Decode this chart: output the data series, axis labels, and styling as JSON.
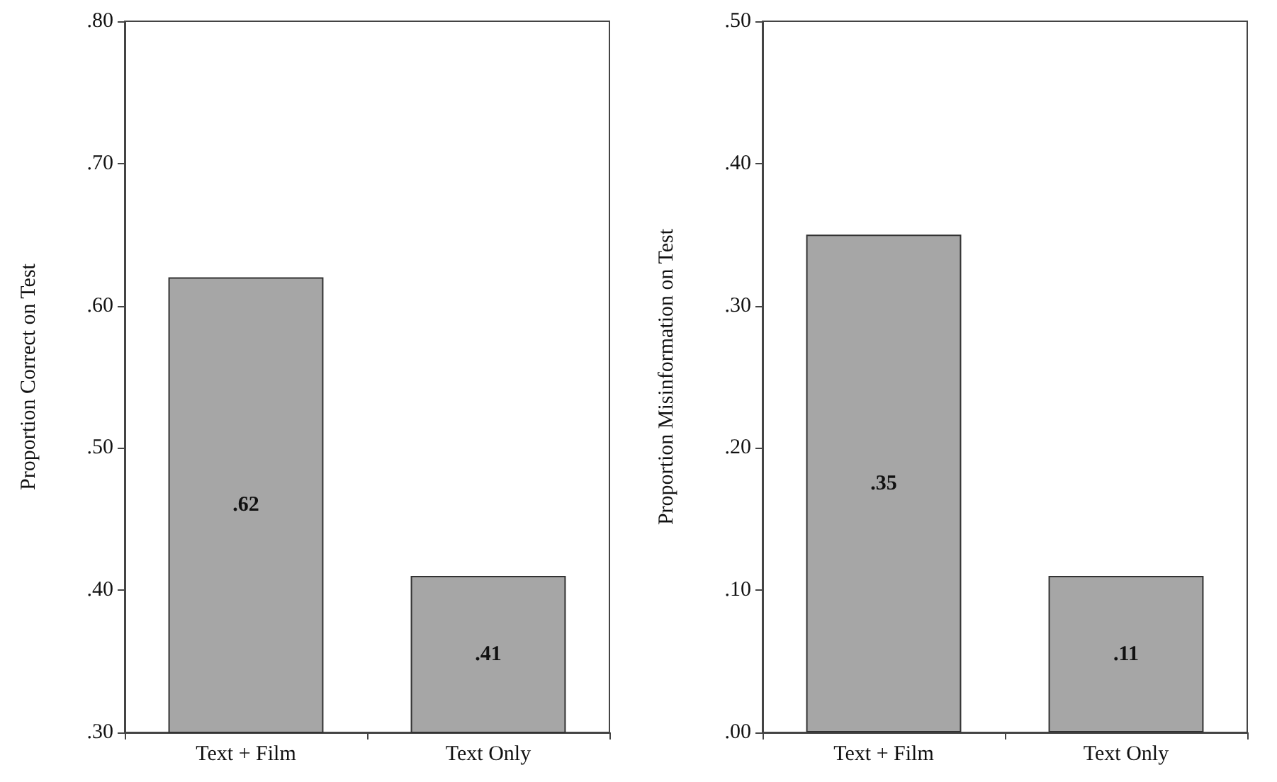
{
  "chart_data": [
    {
      "type": "bar",
      "ylabel": "Proportion Correct on Test",
      "categories": [
        "Text + Film",
        "Text Only"
      ],
      "values": [
        0.62,
        0.41
      ],
      "value_labels": [
        ".62",
        ".41"
      ],
      "color": "#a6a6a6",
      "ylim": [
        0.3,
        0.8
      ],
      "yticks": [
        {
          "value": 0.3,
          "label": ".30"
        },
        {
          "value": 0.4,
          "label": ".40"
        },
        {
          "value": 0.5,
          "label": ".50"
        },
        {
          "value": 0.6,
          "label": ".60"
        },
        {
          "value": 0.7,
          "label": ".70"
        },
        {
          "value": 0.8,
          "label": ".80"
        }
      ],
      "grid": false
    },
    {
      "type": "bar",
      "ylabel": "Proportion Misinformation on Test",
      "categories": [
        "Text + Film",
        "Text Only"
      ],
      "values": [
        0.35,
        0.11
      ],
      "value_labels": [
        ".35",
        ".11"
      ],
      "color": "#a6a6a6",
      "ylim": [
        0,
        0.5
      ],
      "yticks": [
        {
          "value": 0,
          "label": ".00"
        },
        {
          "value": 0.1,
          "label": ".10"
        },
        {
          "value": 0.2,
          "label": ".20"
        },
        {
          "value": 0.3,
          "label": ".30"
        },
        {
          "value": 0.4,
          "label": ".40"
        },
        {
          "value": 0.5,
          "label": ".50"
        }
      ],
      "grid": false
    }
  ]
}
